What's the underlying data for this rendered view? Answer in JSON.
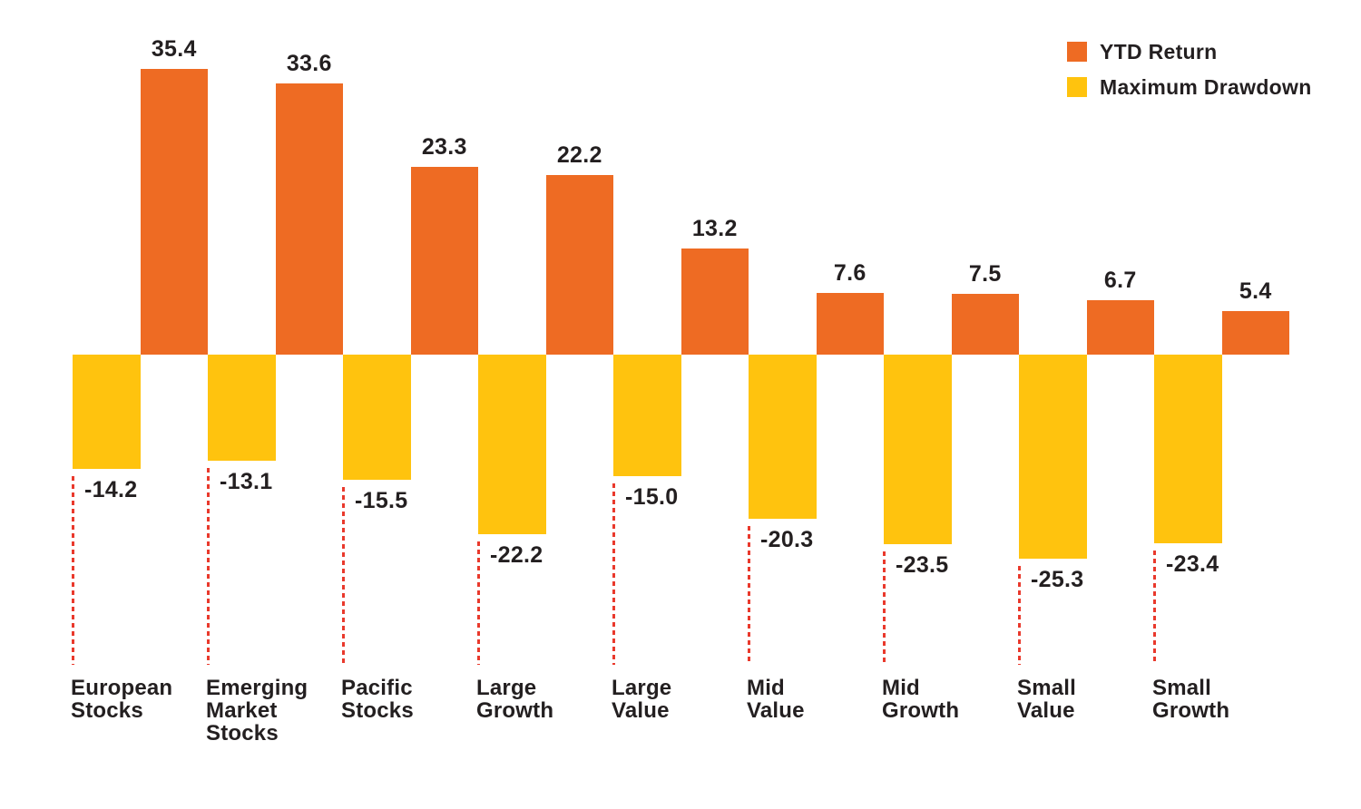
{
  "colors": {
    "return_bar": "#EE6B23",
    "drawdown_bar": "#FFC30E",
    "text": "#231F20",
    "dotted_line": "#E9392C",
    "background": "#FFFFFF"
  },
  "legend": {
    "items": [
      {
        "label": "YTD Return",
        "color_key": "return_bar"
      },
      {
        "label": "Maximum Drawdown",
        "color_key": "drawdown_bar"
      }
    ]
  },
  "chart_data": {
    "type": "bar",
    "title": "",
    "xlabel": "",
    "ylabel": "",
    "categories": [
      "European Stocks",
      "Emerging Market Stocks",
      "Pacific Stocks",
      "Large Growth",
      "Large Value",
      "Mid Value",
      "Mid Growth",
      "Small Value",
      "Small Growth"
    ],
    "category_lines": [
      [
        "European",
        "Stocks"
      ],
      [
        "Emerging",
        "Market",
        "Stocks"
      ],
      [
        "Pacific",
        "Stocks"
      ],
      [
        "Large",
        "Growth"
      ],
      [
        "Large",
        "Value"
      ],
      [
        "Mid",
        "Value"
      ],
      [
        "Mid",
        "Growth"
      ],
      [
        "Small",
        "Value"
      ],
      [
        "Small",
        "Growth"
      ]
    ],
    "series": [
      {
        "name": "YTD Return",
        "color_key": "return_bar",
        "values": [
          35.4,
          33.6,
          23.3,
          22.2,
          13.2,
          7.6,
          7.5,
          6.7,
          5.4
        ]
      },
      {
        "name": "Maximum Drawdown",
        "color_key": "drawdown_bar",
        "values": [
          -14.2,
          -13.1,
          -15.5,
          -22.2,
          -15.0,
          -20.3,
          -23.5,
          -25.3,
          -23.4
        ]
      }
    ],
    "value_label_decimals": 1,
    "ylim": [
      -26,
      36
    ],
    "grid": false,
    "axes_visible": false,
    "legend_position": "top-right",
    "bar_order_in_group": [
      "Maximum Drawdown",
      "YTD Return"
    ]
  }
}
